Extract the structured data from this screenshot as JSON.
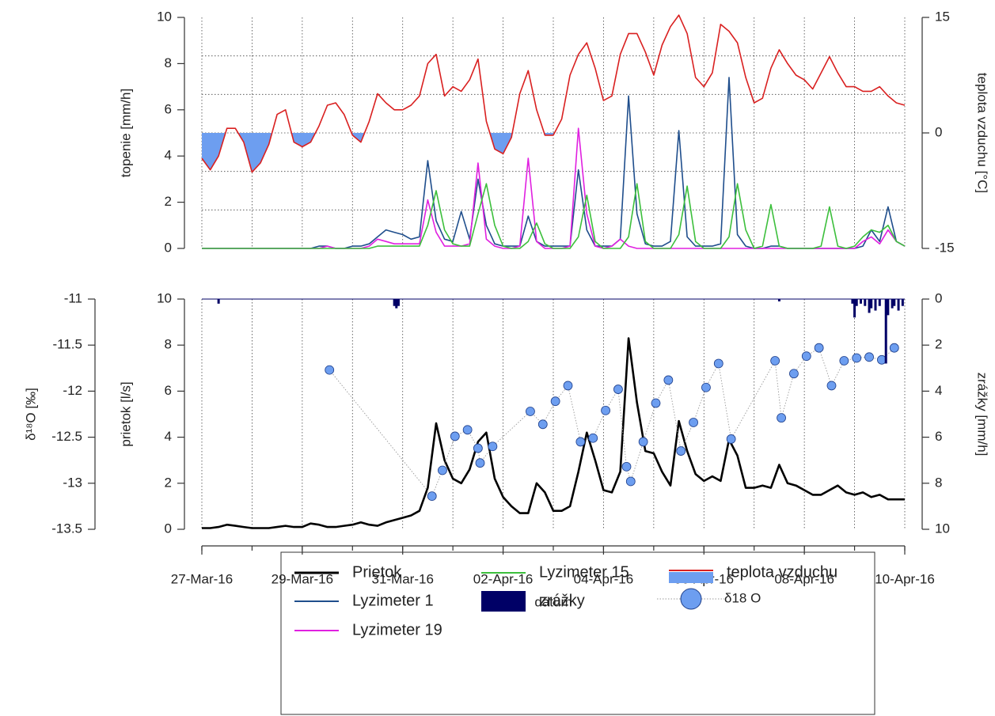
{
  "chart_data": [
    {
      "type": "line",
      "ylabel": "topenie [mm/h]",
      "y2label": "teplota vzduchu [°C]",
      "xlim": [
        "2016-03-27",
        "2016-04-10"
      ],
      "xgrid": [
        "2016-03-27",
        "2016-03-28",
        "2016-03-29",
        "2016-03-30",
        "2016-03-31",
        "2016-04-01",
        "2016-04-02",
        "2016-04-03",
        "2016-04-04",
        "2016-04-05",
        "2016-04-06",
        "2016-04-07",
        "2016-04-08",
        "2016-04-09",
        "2016-04-10"
      ],
      "ylim": [
        0,
        10
      ],
      "yticks": [
        0,
        2,
        4,
        6,
        8,
        10
      ],
      "y2lim": [
        -15,
        15
      ],
      "y2ticks": [
        -15,
        0,
        15
      ],
      "y2grid": [
        -10,
        -5,
        0,
        5,
        10
      ],
      "grid": true,
      "x": [
        "2016-03-27T00:00",
        "2016-03-27T04:00",
        "2016-03-27T08:00",
        "2016-03-27T12:00",
        "2016-03-27T16:00",
        "2016-03-27T20:00",
        "2016-03-28T00:00",
        "2016-03-28T04:00",
        "2016-03-28T08:00",
        "2016-03-28T12:00",
        "2016-03-28T16:00",
        "2016-03-28T20:00",
        "2016-03-29T00:00",
        "2016-03-29T04:00",
        "2016-03-29T08:00",
        "2016-03-29T12:00",
        "2016-03-29T16:00",
        "2016-03-29T20:00",
        "2016-03-30T00:00",
        "2016-03-30T04:00",
        "2016-03-30T08:00",
        "2016-03-30T12:00",
        "2016-03-30T16:00",
        "2016-03-30T20:00",
        "2016-03-31T00:00",
        "2016-03-31T04:00",
        "2016-03-31T08:00",
        "2016-03-31T12:00",
        "2016-03-31T16:00",
        "2016-03-31T20:00",
        "2016-04-01T00:00",
        "2016-04-01T04:00",
        "2016-04-01T08:00",
        "2016-04-01T12:00",
        "2016-04-01T16:00",
        "2016-04-01T20:00",
        "2016-04-02T00:00",
        "2016-04-02T04:00",
        "2016-04-02T08:00",
        "2016-04-02T12:00",
        "2016-04-02T16:00",
        "2016-04-02T20:00",
        "2016-04-03T00:00",
        "2016-04-03T04:00",
        "2016-04-03T08:00",
        "2016-04-03T12:00",
        "2016-04-03T16:00",
        "2016-04-03T20:00",
        "2016-04-04T00:00",
        "2016-04-04T04:00",
        "2016-04-04T08:00",
        "2016-04-04T12:00",
        "2016-04-04T16:00",
        "2016-04-04T20:00",
        "2016-04-05T00:00",
        "2016-04-05T04:00",
        "2016-04-05T08:00",
        "2016-04-05T12:00",
        "2016-04-05T16:00",
        "2016-04-05T20:00",
        "2016-04-06T00:00",
        "2016-04-06T04:00",
        "2016-04-06T08:00",
        "2016-04-06T12:00",
        "2016-04-06T16:00",
        "2016-04-06T20:00",
        "2016-04-07T00:00",
        "2016-04-07T04:00",
        "2016-04-07T08:00",
        "2016-04-07T12:00",
        "2016-04-07T16:00",
        "2016-04-07T20:00",
        "2016-04-08T00:00",
        "2016-04-08T04:00",
        "2016-04-08T08:00",
        "2016-04-08T12:00",
        "2016-04-08T16:00",
        "2016-04-08T20:00",
        "2016-04-09T00:00",
        "2016-04-09T04:00",
        "2016-04-09T08:00",
        "2016-04-09T12:00",
        "2016-04-09T16:00",
        "2016-04-09T20:00",
        "2016-04-10T00:00"
      ],
      "series": [
        {
          "name": "Lyzimeter 1",
          "type": "line",
          "color": "#1f4e8c",
          "values": [
            0,
            0,
            0,
            0,
            0,
            0,
            0,
            0,
            0,
            0,
            0,
            0,
            0,
            0,
            0.1,
            0.1,
            0,
            0,
            0.1,
            0.1,
            0.2,
            0.5,
            0.8,
            0.7,
            0.6,
            0.4,
            0.5,
            3.8,
            1.2,
            0.4,
            0.3,
            1.6,
            0.4,
            3.0,
            1.0,
            0.2,
            0.1,
            0.1,
            0.1,
            1.4,
            0.3,
            0.1,
            0.1,
            0.1,
            0.1,
            3.4,
            0.8,
            0.1,
            0.1,
            0.1,
            0.4,
            6.6,
            1.5,
            0.2,
            0.1,
            0.1,
            0.3,
            5.1,
            0.5,
            0.1,
            0.1,
            0.1,
            0.2,
            7.4,
            0.6,
            0.1,
            0,
            0,
            0.1,
            0.1,
            0,
            0,
            0,
            0,
            0,
            0,
            0,
            0,
            0,
            0.1,
            0.8,
            0.3,
            1.8,
            0.3,
            0.1
          ]
        },
        {
          "name": "Lyzimeter 19",
          "type": "line",
          "color": "#e020e0",
          "values": [
            0,
            0,
            0,
            0,
            0,
            0,
            0,
            0,
            0,
            0,
            0,
            0,
            0,
            0,
            0,
            0.1,
            0,
            0,
            0,
            0,
            0.1,
            0.4,
            0.3,
            0.2,
            0.2,
            0.2,
            0.2,
            2.1,
            0.7,
            0.1,
            0.1,
            0.1,
            0.2,
            3.7,
            0.4,
            0.1,
            0,
            0,
            0.1,
            3.9,
            0.3,
            0,
            0,
            0,
            0.1,
            5.2,
            1.5,
            0.1,
            0,
            0.1,
            0.4,
            0.1,
            0,
            0,
            0,
            0,
            0,
            0,
            0,
            0,
            0,
            0,
            0,
            0,
            0,
            0,
            0,
            0,
            0,
            0,
            0,
            0,
            0,
            0,
            0,
            0,
            0,
            0,
            0,
            0.3,
            0.5,
            0.2,
            0.8,
            0.3,
            0.1
          ]
        },
        {
          "name": "Lyzimeter 15",
          "type": "line",
          "color": "#3cbf3c",
          "values": [
            0,
            0,
            0,
            0,
            0,
            0,
            0,
            0,
            0,
            0,
            0,
            0,
            0,
            0,
            0,
            0,
            0,
            0,
            0,
            0,
            0,
            0.1,
            0.1,
            0.1,
            0.1,
            0.1,
            0.1,
            1.0,
            2.5,
            0.8,
            0.2,
            0.1,
            0.1,
            1.5,
            2.8,
            1.0,
            0.1,
            0,
            0,
            0.3,
            1.1,
            0.2,
            0,
            0,
            0,
            0.5,
            2.3,
            0.3,
            0,
            0,
            0,
            0.5,
            2.8,
            0.3,
            0,
            0,
            0,
            0.6,
            2.7,
            0.3,
            0,
            0,
            0,
            0.5,
            2.8,
            0.8,
            0,
            0.1,
            1.9,
            0.1,
            0,
            0,
            0,
            0,
            0.1,
            1.8,
            0.1,
            0,
            0.1,
            0.5,
            0.8,
            0.7,
            1.0,
            0.3,
            0.1
          ]
        },
        {
          "name": "teplota vzduchu",
          "type": "line",
          "axis": "y2",
          "color": "#d92020",
          "fill_color": "#6d9ef0",
          "values": [
            -3.3,
            -4.8,
            -3.0,
            0.6,
            0.6,
            -1.2,
            -5.1,
            -3.9,
            -1.5,
            2.4,
            3.0,
            -1.2,
            -1.8,
            -1.2,
            0.9,
            3.6,
            3.9,
            2.4,
            -0.3,
            -1.2,
            1.5,
            5.1,
            3.9,
            3.0,
            3.0,
            3.6,
            4.8,
            9.0,
            10.2,
            4.8,
            6.0,
            5.4,
            6.9,
            9.6,
            1.5,
            -2.1,
            -2.7,
            -0.6,
            5.1,
            8.1,
            3.0,
            -0.3,
            -0.3,
            1.8,
            7.5,
            10.2,
            11.7,
            8.4,
            4.2,
            4.8,
            10.2,
            12.9,
            12.9,
            10.5,
            7.5,
            11.4,
            13.8,
            15.3,
            12.9,
            7.2,
            6.0,
            7.8,
            14.1,
            13.2,
            11.7,
            7.2,
            3.9,
            4.5,
            8.4,
            10.8,
            9.0,
            7.5,
            6.9,
            5.7,
            7.8,
            9.9,
            7.8,
            6.0,
            6.0,
            5.4,
            5.4,
            6.0,
            4.8,
            3.9,
            3.6
          ]
        }
      ]
    },
    {
      "type": "line",
      "ylabel": "prietok [l/s]",
      "y2label": "zrážky [mm/h]",
      "y3label": "δ¹⁸O [‰]",
      "xlabel": "dátum",
      "xlim": [
        "2016-03-27",
        "2016-04-10"
      ],
      "xgrid": [
        "2016-03-27",
        "2016-03-28",
        "2016-03-29",
        "2016-03-30",
        "2016-03-31",
        "2016-04-01",
        "2016-04-02",
        "2016-04-03",
        "2016-04-04",
        "2016-04-05",
        "2016-04-06",
        "2016-04-07",
        "2016-04-08",
        "2016-04-09",
        "2016-04-10"
      ],
      "xticks": [
        {
          "value": "2016-03-27",
          "label": "27-Mar-16"
        },
        {
          "value": "2016-03-29",
          "label": "29-Mar-16"
        },
        {
          "value": "2016-03-31",
          "label": "31-Mar-16"
        },
        {
          "value": "2016-04-02",
          "label": "02-Apr-16"
        },
        {
          "value": "2016-04-04",
          "label": "04-Apr-16"
        },
        {
          "value": "2016-04-06",
          "label": "06-Apr-16"
        },
        {
          "value": "2016-04-08",
          "label": "08-Apr-16"
        },
        {
          "value": "2016-04-10",
          "label": "10-Apr-16"
        }
      ],
      "ylim": [
        0,
        10
      ],
      "yticks": [
        0,
        2,
        4,
        6,
        8,
        10
      ],
      "y2lim": [
        10,
        0
      ],
      "y2ticks": [
        0,
        2,
        4,
        6,
        8,
        10
      ],
      "y3lim": [
        -13.5,
        -11
      ],
      "y3ticks": [
        -13.5,
        -13,
        -12.5,
        -12,
        -11.5,
        -11
      ],
      "grid": true,
      "x": [
        "2016-03-27T00:00",
        "2016-03-27T04:00",
        "2016-03-27T08:00",
        "2016-03-27T12:00",
        "2016-03-27T16:00",
        "2016-03-27T20:00",
        "2016-03-28T00:00",
        "2016-03-28T04:00",
        "2016-03-28T08:00",
        "2016-03-28T12:00",
        "2016-03-28T16:00",
        "2016-03-28T20:00",
        "2016-03-29T00:00",
        "2016-03-29T04:00",
        "2016-03-29T08:00",
        "2016-03-29T12:00",
        "2016-03-29T16:00",
        "2016-03-29T20:00",
        "2016-03-30T00:00",
        "2016-03-30T04:00",
        "2016-03-30T08:00",
        "2016-03-30T12:00",
        "2016-03-30T16:00",
        "2016-03-30T20:00",
        "2016-03-31T00:00",
        "2016-03-31T04:00",
        "2016-03-31T08:00",
        "2016-03-31T12:00",
        "2016-03-31T16:00",
        "2016-03-31T20:00",
        "2016-04-01T00:00",
        "2016-04-01T04:00",
        "2016-04-01T08:00",
        "2016-04-01T12:00",
        "2016-04-01T16:00",
        "2016-04-01T20:00",
        "2016-04-02T00:00",
        "2016-04-02T04:00",
        "2016-04-02T08:00",
        "2016-04-02T12:00",
        "2016-04-02T16:00",
        "2016-04-02T20:00",
        "2016-04-03T00:00",
        "2016-04-03T04:00",
        "2016-04-03T08:00",
        "2016-04-03T12:00",
        "2016-04-03T16:00",
        "2016-04-03T20:00",
        "2016-04-04T00:00",
        "2016-04-04T04:00",
        "2016-04-04T08:00",
        "2016-04-04T12:00",
        "2016-04-04T16:00",
        "2016-04-04T20:00",
        "2016-04-05T00:00",
        "2016-04-05T04:00",
        "2016-04-05T08:00",
        "2016-04-05T12:00",
        "2016-04-05T16:00",
        "2016-04-05T20:00",
        "2016-04-06T00:00",
        "2016-04-06T04:00",
        "2016-04-06T08:00",
        "2016-04-06T12:00",
        "2016-04-06T16:00",
        "2016-04-06T20:00",
        "2016-04-07T00:00",
        "2016-04-07T04:00",
        "2016-04-07T08:00",
        "2016-04-07T12:00",
        "2016-04-07T16:00",
        "2016-04-07T20:00",
        "2016-04-08T00:00",
        "2016-04-08T04:00",
        "2016-04-08T08:00",
        "2016-04-08T12:00",
        "2016-04-08T16:00",
        "2016-04-08T20:00",
        "2016-04-09T00:00",
        "2016-04-09T04:00",
        "2016-04-09T08:00",
        "2016-04-09T12:00",
        "2016-04-09T16:00",
        "2016-04-09T20:00",
        "2016-04-10T00:00"
      ],
      "series": [
        {
          "name": "Prietok",
          "type": "line",
          "color": "#000000",
          "values": [
            0.05,
            0.05,
            0.1,
            0.2,
            0.15,
            0.1,
            0.05,
            0.05,
            0.05,
            0.1,
            0.15,
            0.1,
            0.1,
            0.25,
            0.2,
            0.1,
            0.1,
            0.15,
            0.2,
            0.3,
            0.2,
            0.15,
            0.3,
            0.4,
            0.5,
            0.6,
            0.8,
            1.8,
            4.6,
            3.0,
            2.2,
            2.0,
            2.6,
            3.8,
            4.2,
            2.2,
            1.4,
            1.0,
            0.7,
            0.7,
            2.0,
            1.6,
            0.8,
            0.8,
            1.0,
            2.5,
            4.2,
            3.0,
            1.7,
            1.6,
            2.5,
            8.3,
            5.5,
            3.4,
            3.3,
            2.5,
            1.9,
            4.7,
            3.4,
            2.4,
            2.1,
            2.3,
            2.1,
            3.9,
            3.2,
            1.8,
            1.8,
            1.9,
            1.8,
            2.8,
            2.0,
            1.9,
            1.7,
            1.5,
            1.5,
            1.7,
            1.9,
            1.6,
            1.5,
            1.6,
            1.4,
            1.5,
            1.3,
            1.3,
            1.3
          ]
        },
        {
          "name": "δ18 O",
          "type": "scatter",
          "axis": "y3",
          "color": "#6d9ef0",
          "edge_color": "#1f3f8a",
          "x": [
            "2016-03-29T13:00",
            "2016-03-31T14:00",
            "2016-03-31T19:00",
            "2016-04-01T01:00",
            "2016-04-01T07:00",
            "2016-04-01T12:00",
            "2016-04-01T13:00",
            "2016-04-01T19:00",
            "2016-04-02T13:00",
            "2016-04-02T19:00",
            "2016-04-03T01:00",
            "2016-04-03T07:00",
            "2016-04-03T13:00",
            "2016-04-03T19:00",
            "2016-04-04T01:00",
            "2016-04-04T07:00",
            "2016-04-04T11:00",
            "2016-04-04T13:00",
            "2016-04-04T19:00",
            "2016-04-05T01:00",
            "2016-04-05T07:00",
            "2016-04-05T13:00",
            "2016-04-05T19:00",
            "2016-04-06T01:00",
            "2016-04-06T07:00",
            "2016-04-06T13:00",
            "2016-04-07T10:00",
            "2016-04-07T13:00",
            "2016-04-07T19:00",
            "2016-04-08T01:00",
            "2016-04-08T07:00",
            "2016-04-08T13:00",
            "2016-04-08T19:00",
            "2016-04-09T01:00",
            "2016-04-09T07:00",
            "2016-04-09T13:00",
            "2016-04-09T19:00"
          ],
          "values": [
            -11.77,
            -13.14,
            -12.86,
            -12.49,
            -12.42,
            -12.62,
            -12.78,
            -12.6,
            -12.22,
            -12.36,
            -12.11,
            -11.94,
            -12.55,
            -12.51,
            -12.21,
            -11.98,
            -12.82,
            -12.98,
            -12.55,
            -12.13,
            -11.88,
            -12.65,
            -12.34,
            -11.96,
            -11.7,
            -12.52,
            -11.67,
            -12.29,
            -11.81,
            -11.62,
            -11.53,
            -11.94,
            -11.67,
            -11.64,
            -11.63,
            -11.66,
            -11.53
          ]
        },
        {
          "name": "zrážky",
          "type": "bar",
          "axis": "y2",
          "color": "#000066",
          "x": [
            "2016-03-27T08:00",
            "2016-03-30T20:00",
            "2016-03-30T21:00",
            "2016-03-30T22:00",
            "2016-04-07T12:00",
            "2016-04-08T23:00",
            "2016-04-09T00:00",
            "2016-04-09T01:00",
            "2016-04-09T03:00",
            "2016-04-09T05:00",
            "2016-04-09T07:00",
            "2016-04-09T08:00",
            "2016-04-09T10:00",
            "2016-04-09T12:00",
            "2016-04-09T15:00",
            "2016-04-09T16:00",
            "2016-04-09T18:00",
            "2016-04-09T19:00",
            "2016-04-09T21:00",
            "2016-04-09T23:00"
          ],
          "values": [
            0.2,
            0.3,
            0.4,
            0.3,
            0.1,
            0.2,
            0.8,
            0.3,
            0.2,
            0.3,
            0.6,
            0.4,
            0.5,
            0.3,
            2.8,
            0.7,
            0.4,
            0.3,
            0.5,
            0.3
          ]
        }
      ]
    }
  ]
}
